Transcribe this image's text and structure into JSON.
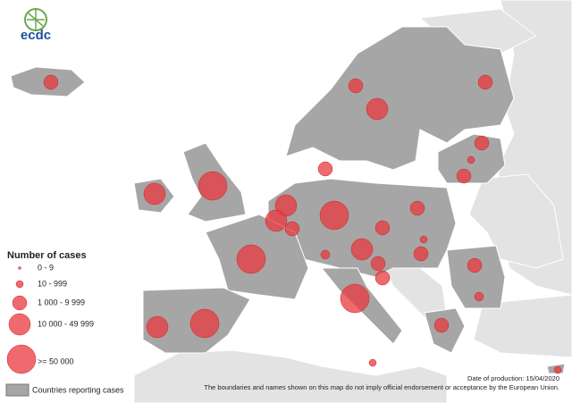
{
  "logo": {
    "text": "ecdc"
  },
  "legend": {
    "title": "Number of cases",
    "items": [
      "0 - 9",
      "10 - 999",
      "1 000 - 9 999",
      "10 000 - 49 999",
      ">= 50 000"
    ],
    "reporting": "Countries reporting cases"
  },
  "footer": {
    "date": "Date of production: 15/04/2020",
    "disclaimer": "The boundaries and names shown on this map do not imply official endorsement or acceptance by the European Union."
  }
}
